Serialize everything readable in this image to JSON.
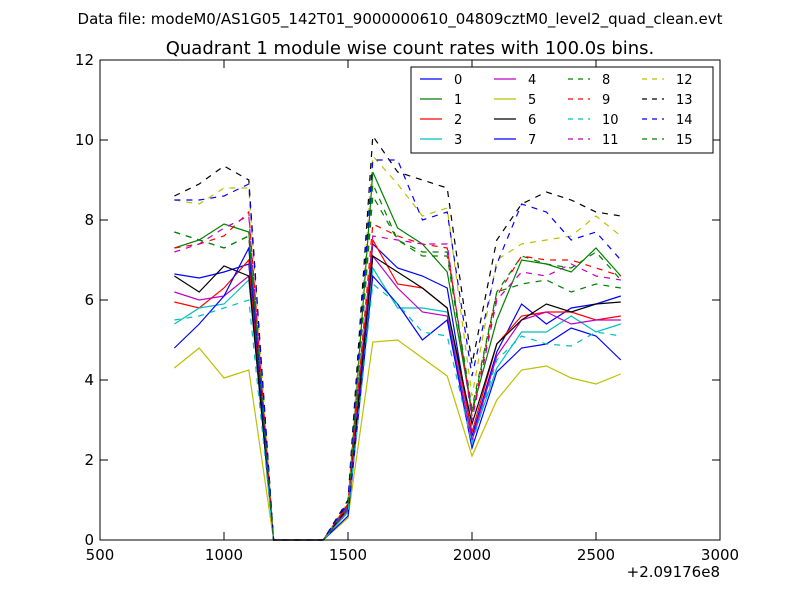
{
  "chart_data": {
    "type": "line",
    "suptitle": "Data file: modeM0/AS1G05_142T01_9000000610_04809cztM0_level2_quad_clean.evt",
    "title": "Quadrant 1 module wise count rates with 100.0s bins.",
    "xlabel": "",
    "ylabel": "",
    "x_offset_label": "+2.09176e8",
    "xlim": [
      500,
      3000
    ],
    "ylim": [
      0,
      12
    ],
    "xticks": [
      "500",
      "1000",
      "1500",
      "2000",
      "2500",
      "3000"
    ],
    "yticks": [
      "0",
      "2",
      "4",
      "6",
      "8",
      "10",
      "12"
    ],
    "grid": false,
    "legend_position": "top-right",
    "x": [
      800,
      900,
      1000,
      1100,
      1200,
      1300,
      1400,
      1500,
      1600,
      1700,
      1800,
      1900,
      2000,
      2100,
      2200,
      2300,
      2400,
      2500,
      2600
    ],
    "series": [
      {
        "name": "0",
        "color": "#0000ff",
        "dash": "solid",
        "values": [
          6.65,
          6.55,
          6.7,
          6.9,
          0,
          0,
          0,
          0.9,
          7.4,
          6.8,
          6.6,
          6.3,
          2.6,
          4.7,
          5.9,
          5.4,
          5.8,
          5.9,
          6.1
        ]
      },
      {
        "name": "1",
        "color": "#008000",
        "dash": "solid",
        "values": [
          7.3,
          7.5,
          7.9,
          7.7,
          0,
          0,
          0,
          0.8,
          9.2,
          7.8,
          7.4,
          6.7,
          3.2,
          5.5,
          7.0,
          6.9,
          6.7,
          7.3,
          6.6
        ]
      },
      {
        "name": "2",
        "color": "#ff0000",
        "dash": "solid",
        "values": [
          5.95,
          5.8,
          6.3,
          7.0,
          0,
          0,
          0,
          0.85,
          7.5,
          6.4,
          6.3,
          5.8,
          2.7,
          4.9,
          5.6,
          5.7,
          5.7,
          5.5,
          5.6
        ]
      },
      {
        "name": "3",
        "color": "#00bfbf",
        "dash": "solid",
        "values": [
          5.4,
          5.8,
          5.9,
          6.5,
          0,
          0,
          0,
          0.7,
          6.8,
          5.8,
          5.8,
          5.7,
          2.5,
          4.3,
          5.2,
          5.2,
          5.6,
          5.2,
          5.4
        ]
      },
      {
        "name": "4",
        "color": "#bf00bf",
        "dash": "solid",
        "values": [
          6.2,
          6.0,
          6.1,
          6.6,
          0,
          0,
          0,
          0.75,
          7.1,
          6.3,
          5.7,
          5.6,
          2.5,
          4.6,
          5.5,
          5.7,
          5.4,
          5.5,
          5.5
        ]
      },
      {
        "name": "5",
        "color": "#bfbf00",
        "dash": "solid",
        "values": [
          4.3,
          4.8,
          4.05,
          4.25,
          0,
          0,
          0,
          0.55,
          4.95,
          5.0,
          4.55,
          4.1,
          2.1,
          3.5,
          4.25,
          4.35,
          4.05,
          3.9,
          4.15
        ]
      },
      {
        "name": "6",
        "color": "#000000",
        "dash": "solid",
        "values": [
          6.6,
          6.2,
          6.85,
          6.6,
          0,
          0,
          0,
          0.8,
          7.1,
          6.7,
          6.3,
          5.8,
          2.9,
          4.9,
          5.5,
          5.9,
          5.7,
          5.9,
          5.95
        ]
      },
      {
        "name": "7",
        "color": "#0000ff",
        "dash": "solid",
        "values": [
          4.8,
          5.4,
          6.1,
          7.3,
          0,
          0,
          0,
          0.6,
          6.6,
          5.9,
          5.0,
          5.5,
          2.3,
          4.2,
          4.8,
          4.9,
          5.3,
          5.1,
          4.5
        ]
      },
      {
        "name": "8",
        "color": "#008000",
        "dash": "dashed",
        "values": [
          7.7,
          7.5,
          7.3,
          7.6,
          0,
          0,
          0,
          0.8,
          8.6,
          7.5,
          7.2,
          7.2,
          3.3,
          6.2,
          7.1,
          6.9,
          6.8,
          7.2,
          6.5
        ]
      },
      {
        "name": "9",
        "color": "#ff0000",
        "dash": "dashed",
        "values": [
          7.3,
          7.4,
          7.6,
          8.2,
          0,
          0,
          0,
          0.9,
          7.9,
          7.6,
          7.4,
          7.3,
          3.1,
          6.1,
          7.1,
          7.0,
          7.0,
          6.8,
          6.6
        ]
      },
      {
        "name": "10",
        "color": "#00bfbf",
        "dash": "dashed",
        "values": [
          5.5,
          5.6,
          5.8,
          6.0,
          0,
          0,
          0,
          0.7,
          6.4,
          5.9,
          5.2,
          5.1,
          2.4,
          4.5,
          5.1,
          4.9,
          4.85,
          5.2,
          5.1
        ]
      },
      {
        "name": "11",
        "color": "#bf00bf",
        "dash": "dashed",
        "values": [
          7.2,
          7.4,
          7.8,
          8.1,
          0,
          0,
          0,
          0.85,
          7.6,
          7.5,
          7.4,
          7.4,
          3.0,
          6.0,
          6.7,
          6.6,
          6.9,
          6.6,
          6.5
        ]
      },
      {
        "name": "12",
        "color": "#bfbf00",
        "dash": "dashed",
        "values": [
          8.5,
          8.4,
          8.8,
          8.8,
          0,
          0,
          0,
          0.95,
          9.6,
          8.9,
          8.1,
          8.3,
          3.6,
          7.0,
          7.4,
          7.5,
          7.6,
          8.1,
          7.6
        ]
      },
      {
        "name": "13",
        "color": "#000000",
        "dash": "dashed",
        "values": [
          8.6,
          8.9,
          9.35,
          9.0,
          0,
          0,
          0,
          1.0,
          10.1,
          9.2,
          9.0,
          8.8,
          4.4,
          7.5,
          8.4,
          8.7,
          8.5,
          8.2,
          8.1
        ]
      },
      {
        "name": "14",
        "color": "#0000ff",
        "dash": "dashed",
        "values": [
          8.5,
          8.5,
          8.6,
          8.9,
          0,
          0,
          0,
          0.95,
          9.5,
          9.5,
          8.0,
          8.2,
          4.1,
          6.9,
          8.4,
          8.2,
          7.5,
          7.7,
          7.0
        ]
      },
      {
        "name": "15",
        "color": "#008000",
        "dash": "dashed",
        "values": [
          7.7,
          7.5,
          7.3,
          7.6,
          0,
          0,
          0,
          0.8,
          8.9,
          7.5,
          7.1,
          7.1,
          3.2,
          6.2,
          6.4,
          6.5,
          6.2,
          6.4,
          6.3
        ]
      }
    ]
  }
}
